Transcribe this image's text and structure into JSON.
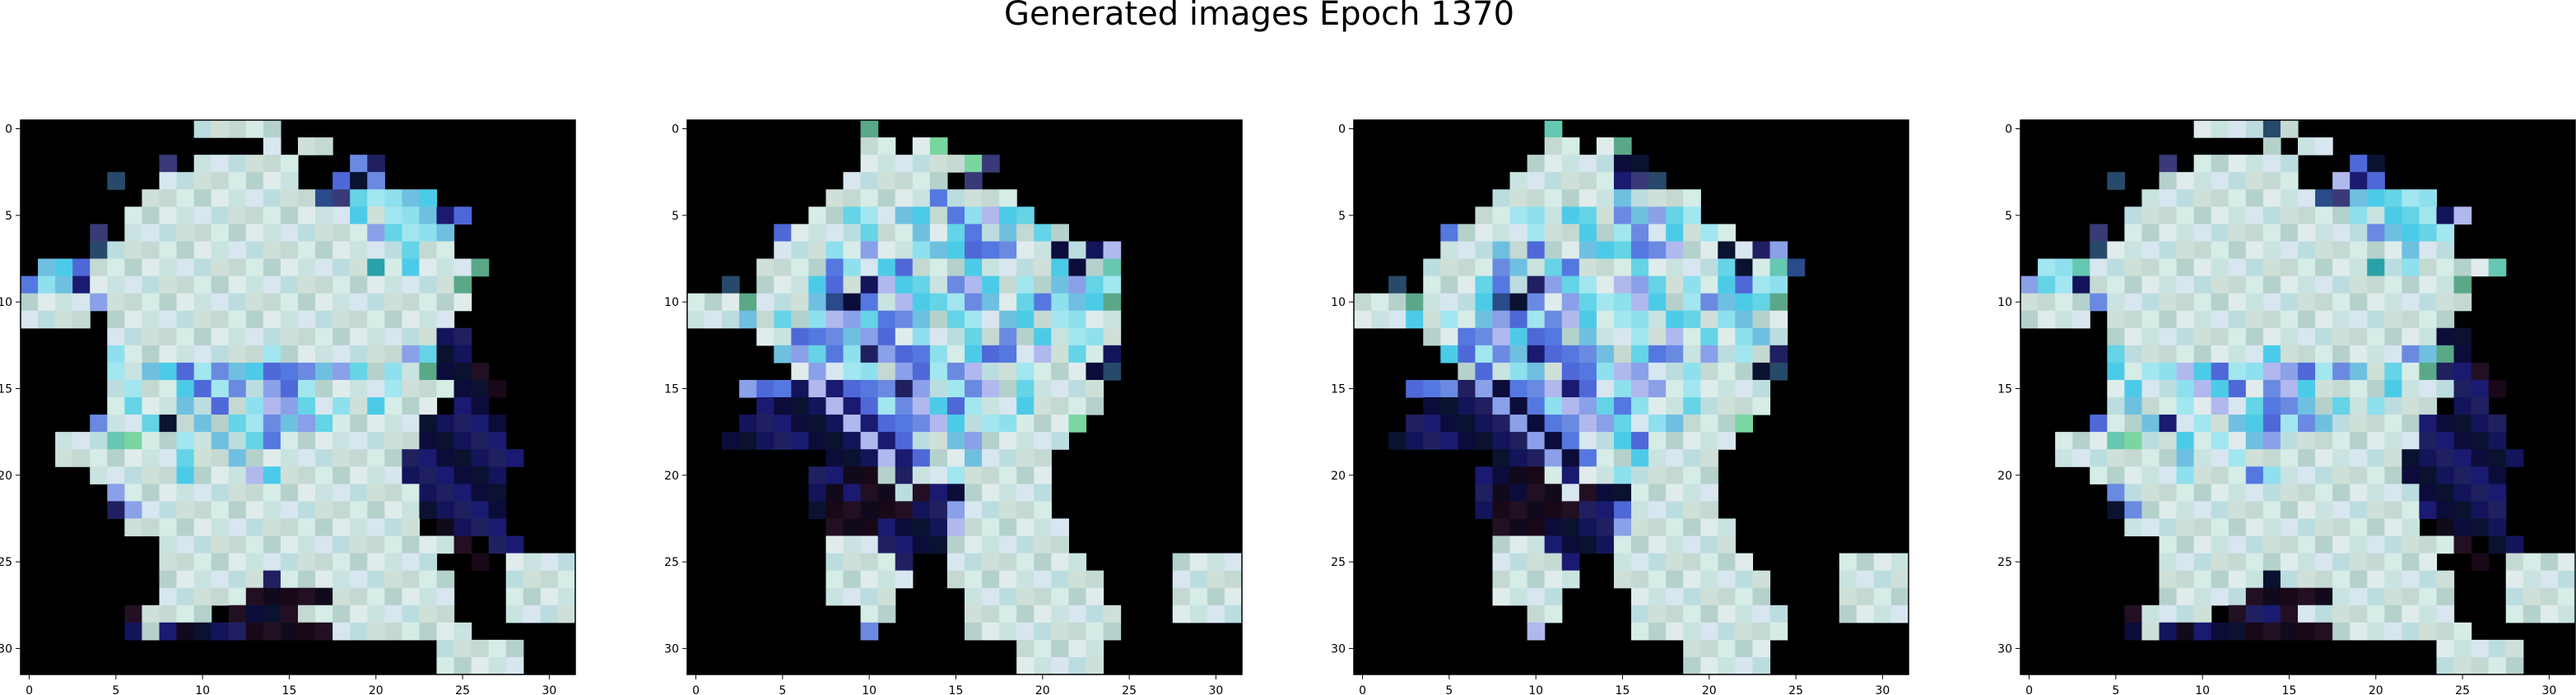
{
  "figure": {
    "title": "Generated images Epoch 1370"
  },
  "chart_data": {
    "type": "heatmap",
    "title": "Generated images Epoch 1370",
    "grid": false,
    "image_shape": [
      32,
      32,
      3
    ],
    "panels": [
      {
        "name": "",
        "xlim": [
          -0.5,
          31.5
        ],
        "ylim": [
          31.5,
          -0.5
        ],
        "xticks": [
          0,
          5,
          10,
          15,
          20,
          25,
          30
        ],
        "yticks": [
          0,
          5,
          10,
          15,
          20,
          25,
          30
        ],
        "rows": [
          "..........ppppp.................",
          "..............p.pp..............",
          "........x.pppppp...bn...........",
          ".....x..pppppppp..bnb...........",
          ".......ppppppppppxxccccc........",
          "......pppppppppppppcpcccnb......",
          "....x.ppppppppppppppbcccc.......",
          "....xpppppppppppppppppcpp.......",
          ".ccbpppppppppppppppptpcpppg.....",
          "bccnpppppppppppppppppppppg......",
          "ppppbppppppppppppppppppppp......",
          "pppp.pppppppppppppppppppp.......",
          ".....pppppppppppppppppppnn......",
          ".....cppppppppcpppppppbcnn......",
          ".....cpccbcbccbbbcbcpcpgnnd.....",
          ".....pcppcbcbpbbcppppcpppnnd....",
          ".....pcppcpbpcbbcpcpcppp.nn.....",
          "....bppcnpcpccbcbcpppppnnnnn....",
          "..pppggppcpcpcbppppppppnnnnn....",
          "..pppppppcppcpppppppppnnnnnnn...",
          "....pppppcpppbcpppppppnnnnnn....",
          ".....bpppppppppppppppppnnnnn....",
          ".....nbppppppppppppppppnnnnn....",
          "......ppppppppppppppppp.dnnn....",
          "........pppppppppppppppppd.nn...",
          "........pppppppppppppppp..d.pppp",
          "........ppppppnpppppppppp...pppp",
          "........pppppdddddppppppp...pppp",
          "......dpppp.dnndppppppppp...pppp",
          "......npndnnndddddpppppppp......",
          "........................ppppp...",
          "........................ppppp..."
        ]
      },
      {
        "name": "",
        "xlim": [
          -0.5,
          31.5
        ],
        "ylim": [
          31.5,
          -0.5
        ],
        "xticks": [
          0,
          5,
          10,
          15,
          20,
          25,
          30
        ],
        "yticks": [
          0,
          5,
          10,
          15,
          20,
          25,
          30
        ],
        "rows": [
          "..........g.....................",
          "..........pp.pg.................",
          "..........ppppppgx..............",
          ".........pppppp.x...............",
          "........ppppppbpppp.............",
          ".......ppccpccpbcbcc............",
          ".....bppppcppcpcbpcpcp..........",
          ".....pppcpbppcccbbbppnpnb.......",
          "....ppppbcpcbpppcppppcnpg.......",
          "..x.pppcbpnbccpbbcpcpcbcc.......",
          "pppgpppcxnbpbcccbcpcbcccg.......",
          "pppcpcpcbbcbbcpccpccpccpp.......",
          "....ppbbbcbbpcppcpbpcpccp.......",
          ".....cbcbcnbbbcpcbbpbpcpn.......",
          "......pbpccpbbcbbppcpppnx.......",
          "...bbbnbnbbbnbpcbbpcpppp........",
          "....nnnnbnbcbbcbcppcpppp........",
          "...nnnnnnbnbbbbcpccpppg.........",
          "..nnnnnnnnbnbppcbppppp..........",
          "........nnnbnbppcpppp...........",
          ".......nnddpnppcppppp...........",
          ".......ndnddpdnnppppp...........",
          ".......ndddddnnbppppp...........",
          "........dddnnnnbpppppp..........",
          "........pppnnnnppppppp..........",
          "........ppppn..pppppppp.....pppp",
          "........ppppp..ppppppppp....pppp",
          "........pppp....pppppppp....pppp",
          "..........pp....ppppppppp...pppp",
          "..........b.....ppppppppp.......",
          "...................ppppp........",
          "...................ppppp........"
        ]
      },
      {
        "name": "",
        "xlim": [
          -0.5,
          31.5
        ],
        "ylim": [
          31.5,
          -0.5
        ],
        "xticks": [
          0,
          5,
          10,
          15,
          20,
          25,
          30
        ],
        "yticks": [
          0,
          5,
          10,
          15,
          20,
          25,
          30
        ],
        "rows": [
          "...........g....................",
          "...........pp.pg................",
          "..........pppppnn...............",
          ".........ppppppnxx..............",
          "........pppppppcpppp............",
          ".......ppccpccpbcbcc............",
          ".....bppppcppcpcbpcpcp..........",
          ".....pppcpbppcccbbbppnpnb.......",
          "....ppppbcpcbpppcppppcnpgx......",
          "..x.pppcbpnbccpbbcpcpcbcc.......",
          "pppgpppcxnbpbcccbcpcbcccg.......",
          "pppcpcpcbbcbbcpccpccpccpp.......",
          "....ppbbbcbbpcppcpbpcpccp.......",
          ".....cbcbcnbbbcpcbbpbpcpn.......",
          "......pbpccpbbcbbppcpppnx.......",
          "...bbbnbnbbbnbpcbbpcpppp........",
          "....nnnnbnbcbbcbcppcpppp........",
          "...nnnnnnbnbbbbcpccpppg.........",
          "..nnnnnnnnbnbppcbppppp..........",
          "........nnnbnbppcpppp...........",
          ".......nnddpnppcppppp...........",
          ".......ndnddpdnnppppp...........",
          ".......ndddddnnbppppp...........",
          "........dddnnnnbpppppp..........",
          "........pppnnnnppppppp..........",
          "........ppppn..pppppppp.....pppp",
          "........ppppp..ppppppppp....pppp",
          "........pppp....pppppppp....pppp",
          "..........pp....ppppppppp...pppp",
          "..........b.....ppppppppp.......",
          "...................ppppp........",
          "...................ppppp........"
        ]
      },
      {
        "name": "",
        "xlim": [
          -0.5,
          31.5
        ],
        "ylim": [
          31.5,
          -0.5
        ],
        "xticks": [
          0,
          5,
          10,
          15,
          20,
          25,
          30
        ],
        "yticks": [
          0,
          5,
          10,
          15,
          20,
          25,
          30
        ],
        "rows": [
          "..........ppppxp................",
          "..............p.pp..............",
          "........x.pppppp...bn...........",
          ".....x..pppppppp..bnb...........",
          ".......ppppppppppxxccccc........",
          "......pppppppppppppcpcccnb......",
          "....x.ppppppppppppppbcccc.......",
          "....xpppppppppppppppppcpp.......",
          ".ccgpppppppppppppppptpcppppg....",
          "bccnpppppppppppppppppppppg......",
          "ppppbppppppppppppppppppppp......",
          "pppp.pppppppppppppppppppp.......",
          ".....pppppppppppppppppppnn......",
          ".....cppppppppcpppppppbcgn......",
          ".....cpccbcbccbbbcbcpcpgnnd.....",
          ".....pcppcbcbpbbcppppcpppnnd....",
          ".....pcppcpbpcbbcpcpcppp.nn.....",
          "....bppcnpcpccbcbcpppppnnnnn....",
          "..pppggppcpcpcbppppppppnnnnn....",
          "..pppppppcppcpppppppppnnnnnnn...",
          "....pppppcpppbcpppppppnnnnnn....",
          ".....bpppppppppppppppppnnnnn....",
          ".....nbppppppppppppppppnnnnn....",
          "......ppppppppppppppppp.dnnn....",
          "........pppppppppppppppppd.nn...",
          "........pppppppppppppppp..d.pppp",
          "........ppppppnpppppppppp...pppp",
          "........pppppdddddppppppp...pppp",
          "......dpppp.dnndppppppppp...pppp",
          "......npndnnndddddpppppppp......",
          "........................ppppp...",
          "........................ppppp..."
        ]
      }
    ]
  },
  "colors": {
    "background": "#000000",
    "palette": {
      "p": [
        "#c9e3e0",
        "#d6ece6",
        "#bcdde0",
        "#e0ecec",
        "#c4d9d2",
        "#d8e6f0",
        "#b5d1cc",
        "#cfe0d8"
      ],
      "c": [
        "#64d4e6",
        "#8fe0ee",
        "#4ccbe8",
        "#a2e6f0",
        "#6fc0e0"
      ],
      "b": [
        "#4f68d8",
        "#6a8ae2",
        "#8aa0e8",
        "#5478e0",
        "#b0b8ee"
      ],
      "n": [
        "#0c0c3a",
        "#14145a",
        "#1a1a70",
        "#0a1230",
        "#202060"
      ],
      "d": [
        "#180818",
        "#221022",
        "#100a1c"
      ],
      "g": [
        "#7ad6a0",
        "#5aa888",
        "#66c8b0"
      ],
      "x": [
        "#2a4a8a",
        "#3a3a78",
        "#284a6a"
      ],
      "t": [
        "#2aa0a8"
      ]
    }
  }
}
